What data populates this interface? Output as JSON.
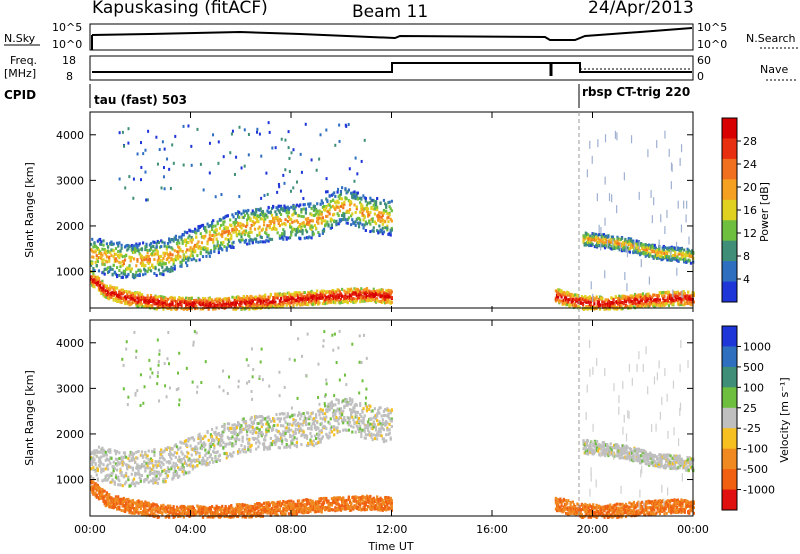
{
  "header": {
    "station": "Kapuskasing (fitACF)",
    "beam": "Beam 11",
    "date": "24/Apr/2013"
  },
  "top_panels": {
    "nsky": {
      "label": "N.Sky",
      "right_label": "N.Search",
      "ylabel_left_top": "10^5",
      "ylabel_left_bottom": "10^0",
      "ylabel_right_top": "10^5",
      "ylabel_right_bottom": "10^0"
    },
    "freq": {
      "label": "Freq.",
      "unit": "[MHz]",
      "right_label": "Nave",
      "ylabel_left_top": "18",
      "ylabel_left_bottom": "8",
      "ylabel_right_top": "60",
      "ylabel_right_bottom": "0"
    },
    "cpid": {
      "label": "CPID",
      "mode1": "tau (fast) 503",
      "mode2": "rbsp CT-trig 220"
    }
  },
  "chart_data": [
    {
      "type": "heatmap",
      "name": "power",
      "ylabel": "Slant Range [km]",
      "colorbar_label": "Power [dB]",
      "ylim": [
        200,
        4500
      ],
      "y_ticks": [
        1000,
        2000,
        3000,
        4000
      ],
      "colorbar_ticks": [
        "4",
        "8",
        "12",
        "16",
        "20",
        "24",
        "28"
      ],
      "colors": [
        "#1e35d8",
        "#2f6fc0",
        "#3f8f78",
        "#6fbf3f",
        "#e0d020",
        "#f5a020",
        "#f07020",
        "#e83010",
        "#d80000"
      ],
      "bands": [
        {
          "t": [
            0.0,
            1.5,
            3.0,
            4.5,
            6.0,
            7.5,
            9.0,
            10.0,
            11.0,
            12.0
          ],
          "r": [
            1400,
            1250,
            1350,
            1700,
            2000,
            2100,
            2150,
            2500,
            2300,
            2200
          ]
        },
        {
          "t": [
            0.0,
            0.6,
            1.5,
            3.0,
            5.0,
            7.0,
            9.5,
            11.0,
            12.0
          ],
          "r": [
            900,
            600,
            450,
            320,
            300,
            380,
            480,
            520,
            480
          ]
        },
        {
          "t": [
            18.5,
            19.5,
            20.5,
            21.5,
            22.5,
            23.5,
            24.0
          ],
          "r": [
            500,
            350,
            320,
            380,
            420,
            450,
            420
          ]
        },
        {
          "t": [
            19.6,
            20.5,
            21.5,
            22.5,
            23.5,
            24.0
          ],
          "r": [
            1750,
            1700,
            1600,
            1450,
            1400,
            1350
          ]
        }
      ]
    },
    {
      "type": "heatmap",
      "name": "velocity",
      "ylabel": "Slant Range [km]",
      "xlabel": "Time UT",
      "colorbar_label": "Velocity [m s⁻¹]",
      "ylim": [
        200,
        4500
      ],
      "y_ticks": [
        1000,
        2000,
        3000,
        4000
      ],
      "x_ticks": [
        "00:00",
        "04:00",
        "08:00",
        "12:00",
        "16:00",
        "20:00",
        "00:00"
      ],
      "colorbar_ticks": [
        "1000",
        "500",
        "100",
        "25",
        "-25",
        "-100",
        "-500",
        "-1000"
      ],
      "colors": [
        "#1e35d8",
        "#2f6fc0",
        "#3f8f78",
        "#6fbf3f",
        "#bfbfbf",
        "#f5c020",
        "#f08a20",
        "#f06010",
        "#e01010"
      ]
    }
  ]
}
